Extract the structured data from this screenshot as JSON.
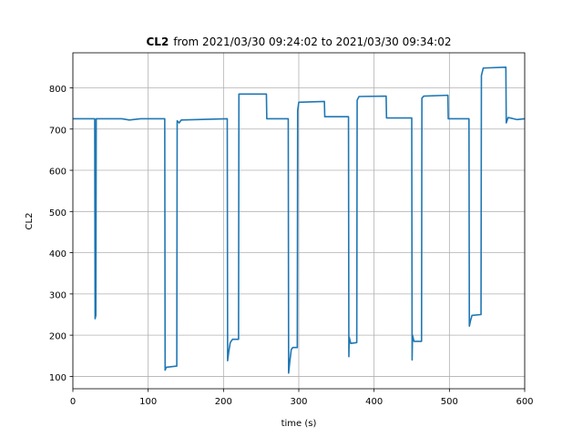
{
  "chart_data": {
    "type": "line",
    "title": "CL2",
    "subtitle": "from 2021/03/30 09:24:02 to 2021/03/30 09:34:02",
    "xlabel": "time (s)",
    "ylabel": "CL2",
    "xlim": [
      0,
      600
    ],
    "ylim": [
      70,
      885
    ],
    "xticks": [
      0,
      100,
      200,
      300,
      400,
      500,
      600
    ],
    "yticks": [
      100,
      200,
      300,
      400,
      500,
      600,
      700,
      800
    ],
    "grid": true,
    "color": "#1f77b4",
    "series": [
      {
        "name": "",
        "points": [
          [
            0,
            725
          ],
          [
            29,
            725
          ],
          [
            29.5,
            240
          ],
          [
            30.5,
            248
          ],
          [
            31,
            725
          ],
          [
            65,
            725
          ],
          [
            75,
            722
          ],
          [
            90,
            725
          ],
          [
            122,
            725
          ],
          [
            122.5,
            115
          ],
          [
            124,
            122
          ],
          [
            138,
            125
          ],
          [
            138.5,
            720
          ],
          [
            141,
            715
          ],
          [
            144,
            722
          ],
          [
            205,
            725
          ],
          [
            205.5,
            138
          ],
          [
            207,
            160
          ],
          [
            209,
            182
          ],
          [
            212,
            190
          ],
          [
            220,
            190
          ],
          [
            220.5,
            785
          ],
          [
            257,
            785
          ],
          [
            257.5,
            725
          ],
          [
            286,
            725
          ],
          [
            286.5,
            108
          ],
          [
            288,
            135
          ],
          [
            290,
            165
          ],
          [
            292,
            170
          ],
          [
            298,
            170
          ],
          [
            298.5,
            745
          ],
          [
            300,
            765
          ],
          [
            334,
            767
          ],
          [
            334.5,
            730
          ],
          [
            366,
            730
          ],
          [
            366.5,
            148
          ],
          [
            367,
            195
          ],
          [
            369,
            180
          ],
          [
            377,
            182
          ],
          [
            377.5,
            770
          ],
          [
            380,
            779
          ],
          [
            416,
            780
          ],
          [
            416.5,
            727
          ],
          [
            450,
            727
          ],
          [
            450.5,
            140
          ],
          [
            451,
            200
          ],
          [
            453,
            185
          ],
          [
            463,
            185
          ],
          [
            463.5,
            775
          ],
          [
            466,
            780
          ],
          [
            498,
            782
          ],
          [
            498.5,
            725
          ],
          [
            526,
            725
          ],
          [
            526.5,
            222
          ],
          [
            528,
            235
          ],
          [
            530,
            248
          ],
          [
            542,
            250
          ],
          [
            542.5,
            830
          ],
          [
            545,
            848
          ],
          [
            575,
            850
          ],
          [
            575.5,
            715
          ],
          [
            578,
            728
          ],
          [
            590,
            723
          ],
          [
            600,
            725
          ]
        ]
      }
    ]
  }
}
